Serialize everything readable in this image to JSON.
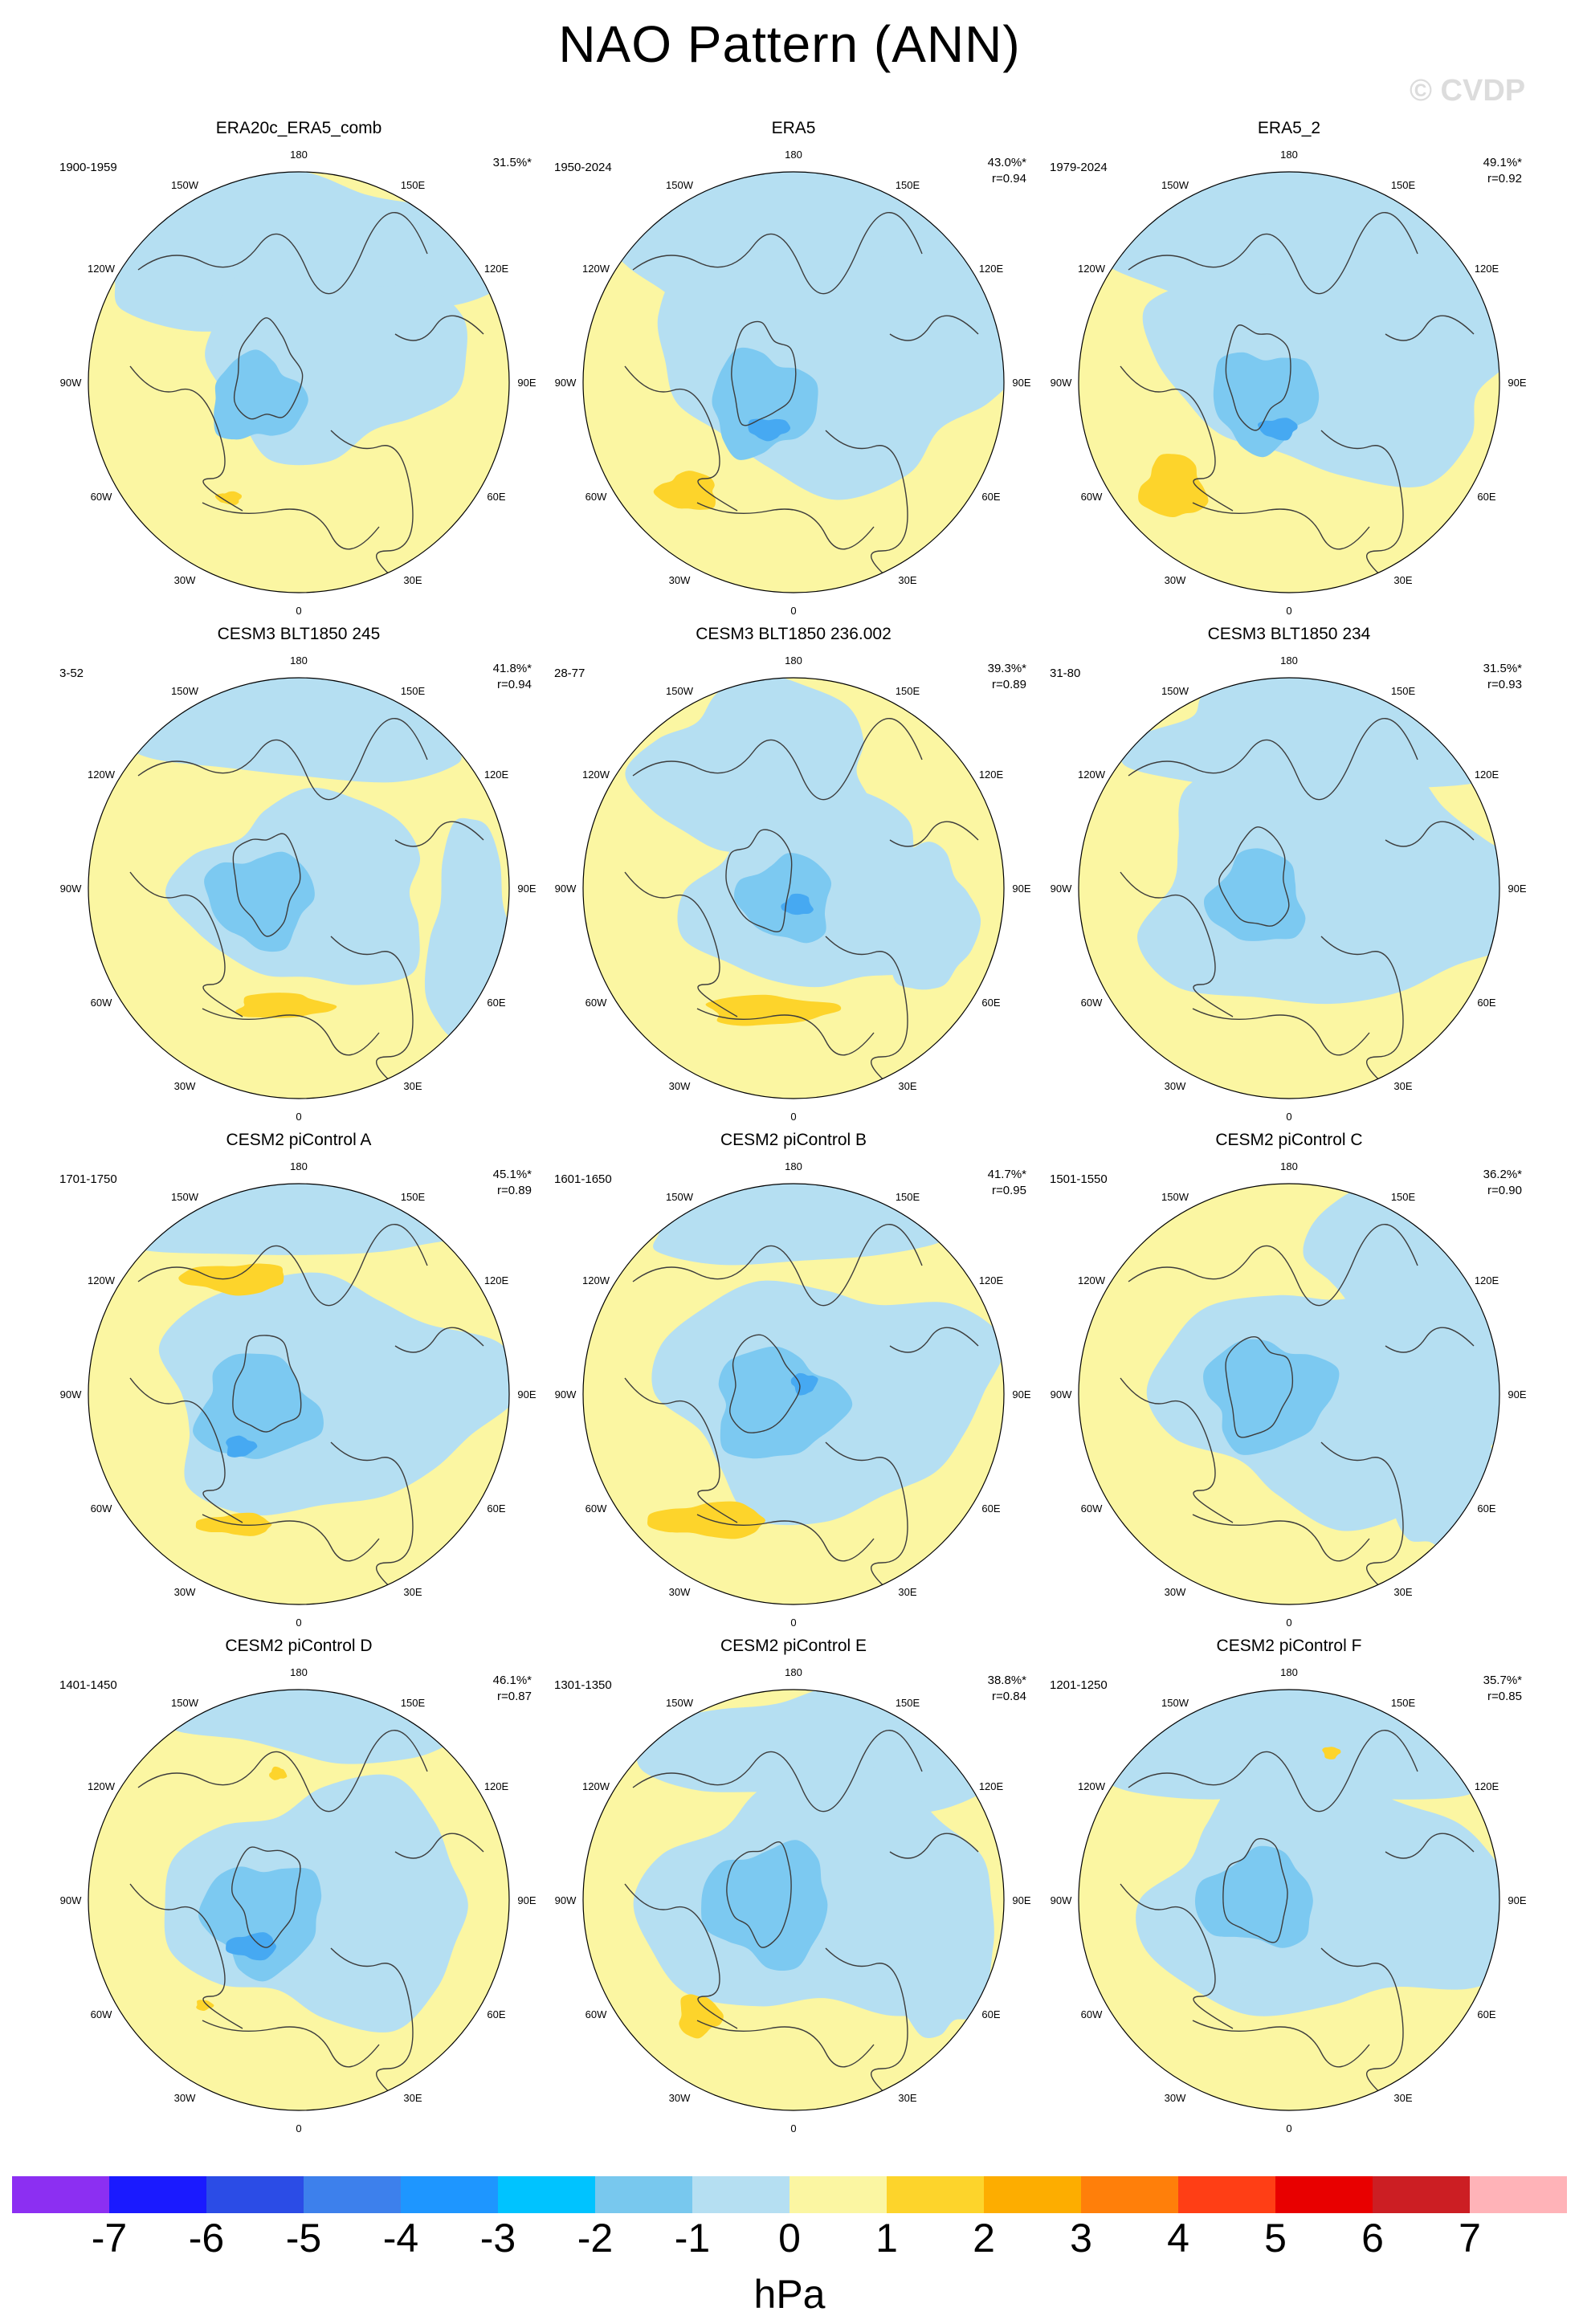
{
  "title": "NAO Pattern (ANN)",
  "watermark": "© CVDP",
  "colors": {
    "pos1": "#fbf6a2",
    "pos2": "#fdd42b",
    "neg1": "#b5dff2",
    "neg2": "#7cc9f1",
    "neg3": "#46a9f2",
    "land_outline": "#3c3c3c"
  },
  "longitude_labels": [
    "180",
    "150E",
    "120E",
    "90E",
    "60E",
    "30E",
    "0",
    "30W",
    "60W",
    "90W",
    "120W",
    "150W"
  ],
  "chart_data": {
    "type": "polar-stereographic contour maps",
    "variable": "NAO sea level pressure pattern",
    "units": "hPa",
    "panels": [
      {
        "name": "ERA20c_ERA5_comb",
        "years": "1900-1959",
        "pct": "31.5%*",
        "r": ""
      },
      {
        "name": "ERA5",
        "years": "1950-2024",
        "pct": "43.0%*",
        "r": "r=0.94"
      },
      {
        "name": "ERA5_2",
        "years": "1979-2024",
        "pct": "49.1%*",
        "r": "r=0.92"
      },
      {
        "name": "CESM3 BLT1850 245",
        "years": "3-52",
        "pct": "41.8%*",
        "r": "r=0.94"
      },
      {
        "name": "CESM3 BLT1850 236.002",
        "years": "28-77",
        "pct": "39.3%*",
        "r": "r=0.89"
      },
      {
        "name": "CESM3 BLT1850 234",
        "years": "31-80",
        "pct": "31.5%*",
        "r": "r=0.93"
      },
      {
        "name": "CESM2 piControl A",
        "years": "1701-1750",
        "pct": "45.1%*",
        "r": "r=0.89"
      },
      {
        "name": "CESM2 piControl B",
        "years": "1601-1650",
        "pct": "41.7%*",
        "r": "r=0.95"
      },
      {
        "name": "CESM2 piControl C",
        "years": "1501-1550",
        "pct": "36.2%*",
        "r": "r=0.90"
      },
      {
        "name": "CESM2 piControl D",
        "years": "1401-1450",
        "pct": "46.1%*",
        "r": "r=0.87"
      },
      {
        "name": "CESM2 piControl E",
        "years": "1301-1350",
        "pct": "38.8%*",
        "r": "r=0.84"
      },
      {
        "name": "CESM2 piControl F",
        "years": "1201-1250",
        "pct": "35.7%*",
        "r": "r=0.85"
      }
    ],
    "colorbar": {
      "unit": "hPa",
      "ticks": [
        "-7",
        "-6",
        "-5",
        "-4",
        "-3",
        "-2",
        "-1",
        "0",
        "1",
        "2",
        "3",
        "4",
        "5",
        "6",
        "7"
      ],
      "colors": [
        "#8c2ff2",
        "#1a1aff",
        "#2b4ce6",
        "#3d80ec",
        "#1e96ff",
        "#00c3ff",
        "#78c8ee",
        "#b5dff2",
        "#fbf6a2",
        "#fdd42b",
        "#fdad00",
        "#ff7f0a",
        "#ff3e15",
        "#e80000",
        "#cc1e23",
        "#ffb3b8"
      ]
    }
  }
}
